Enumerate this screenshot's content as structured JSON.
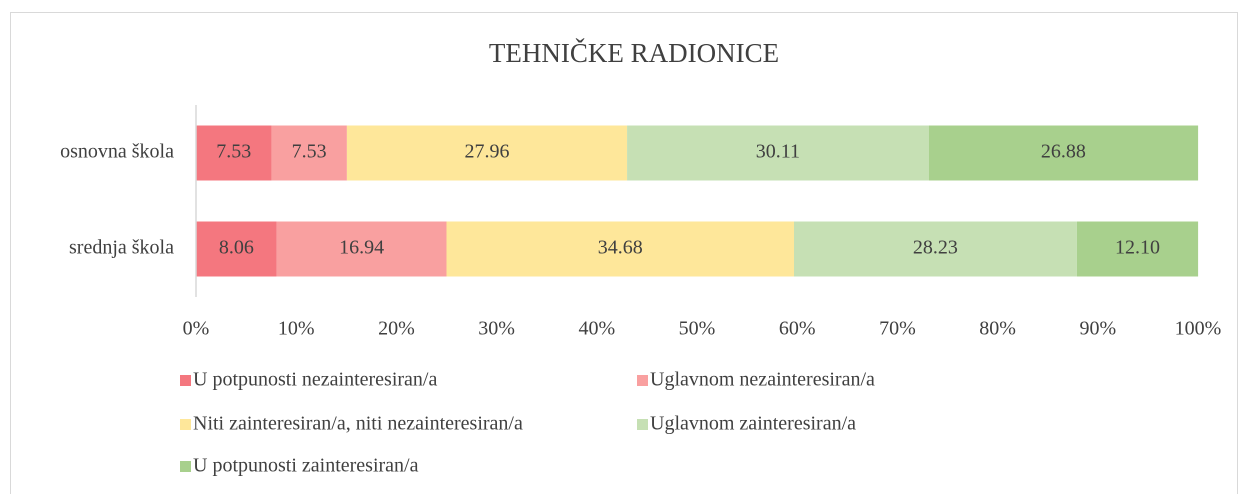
{
  "chart_data": {
    "type": "stacked-barh",
    "title": "TEHNIČKE RADIONICE",
    "categories": [
      "osnovna škola",
      "srednja škola"
    ],
    "series": [
      {
        "name": "U potpunosti nezainteresiran/a",
        "color": "#f4777f",
        "values": [
          7.53,
          8.06
        ]
      },
      {
        "name": "Uglavnom nezainteresiran/a",
        "color": "#f9a0a0",
        "values": [
          7.53,
          16.94
        ]
      },
      {
        "name": "Niti zainteresiran/a, niti nezainteresiran/a",
        "color": "#fee79a",
        "values": [
          27.96,
          34.68
        ]
      },
      {
        "name": "Uglavnom zainteresiran/a",
        "color": "#c6e0b4",
        "values": [
          30.11,
          28.23
        ]
      },
      {
        "name": "U potpunosti zainteresiran/a",
        "color": "#a8d08d",
        "values": [
          26.88,
          12.1
        ],
        "value_labels": [
          "26.88",
          "12.10"
        ]
      }
    ],
    "xlim": [
      0,
      100
    ],
    "xticks": [
      {
        "value": 0,
        "label": "0%"
      },
      {
        "value": 10,
        "label": "10%"
      },
      {
        "value": 20,
        "label": "20%"
      },
      {
        "value": 30,
        "label": "30%"
      },
      {
        "value": 40,
        "label": "40%"
      },
      {
        "value": 50,
        "label": "50%"
      },
      {
        "value": 60,
        "label": "60%"
      },
      {
        "value": 70,
        "label": "70%"
      },
      {
        "value": 80,
        "label": "80%"
      },
      {
        "value": 90,
        "label": "90%"
      },
      {
        "value": 100,
        "label": "100%"
      }
    ],
    "legend": "bottom"
  }
}
